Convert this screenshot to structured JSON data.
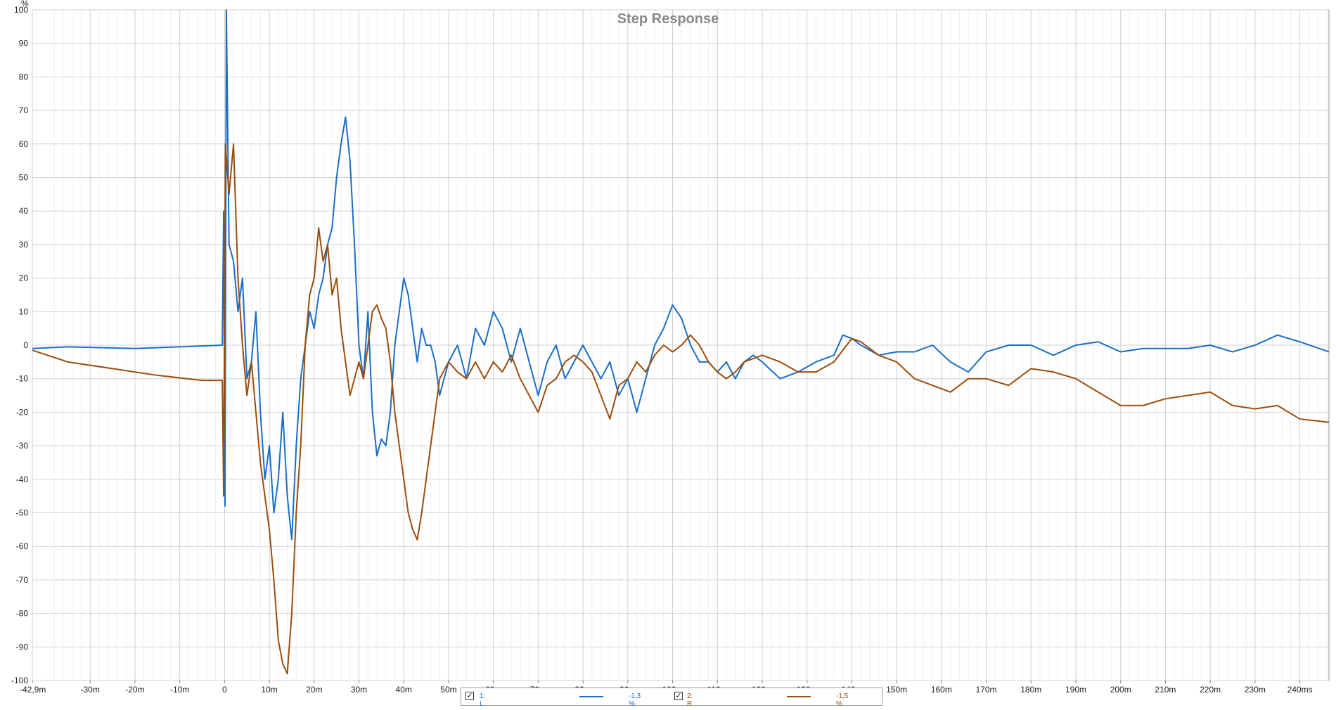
{
  "chart_data": {
    "type": "line",
    "title": "Step Response",
    "ylabel": "%",
    "xlabel": "",
    "xlim": [
      -0.0429,
      0.2465
    ],
    "ylim": [
      -100,
      100
    ],
    "grid": true,
    "legend_position": "bottom-center",
    "y_ticks": [
      100,
      90,
      80,
      70,
      60,
      50,
      40,
      30,
      20,
      10,
      0,
      -10,
      -20,
      -30,
      -40,
      -50,
      -60,
      -70,
      -80,
      -90,
      -100
    ],
    "x_ticks": [
      {
        "value": -0.0429,
        "label": "-42,9m"
      },
      {
        "value": -0.03,
        "label": "-30m"
      },
      {
        "value": -0.02,
        "label": "-20m"
      },
      {
        "value": -0.01,
        "label": "-10m"
      },
      {
        "value": 0,
        "label": "0"
      },
      {
        "value": 0.01,
        "label": "10m"
      },
      {
        "value": 0.02,
        "label": "20m"
      },
      {
        "value": 0.03,
        "label": "30m"
      },
      {
        "value": 0.04,
        "label": "40m"
      },
      {
        "value": 0.05,
        "label": "50m"
      },
      {
        "value": 0.06,
        "label": "60m"
      },
      {
        "value": 0.07,
        "label": "70m"
      },
      {
        "value": 0.08,
        "label": "80m"
      },
      {
        "value": 0.09,
        "label": "90m"
      },
      {
        "value": 0.1,
        "label": "100m"
      },
      {
        "value": 0.11,
        "label": "110m"
      },
      {
        "value": 0.12,
        "label": "120m"
      },
      {
        "value": 0.13,
        "label": "130m"
      },
      {
        "value": 0.14,
        "label": "140m"
      },
      {
        "value": 0.15,
        "label": "150m"
      },
      {
        "value": 0.16,
        "label": "160m"
      },
      {
        "value": 0.17,
        "label": "170m"
      },
      {
        "value": 0.18,
        "label": "180m"
      },
      {
        "value": 0.19,
        "label": "190m"
      },
      {
        "value": 0.2,
        "label": "200m"
      },
      {
        "value": 0.21,
        "label": "210m"
      },
      {
        "value": 0.22,
        "label": "220m"
      },
      {
        "value": 0.23,
        "label": "230m"
      },
      {
        "value": 0.24,
        "label": "240ms"
      }
    ],
    "series": [
      {
        "name": "1: L",
        "color": "#1a6ec8",
        "legend_value": "-1,3 %",
        "checked": true,
        "points": [
          [
            -0.0429,
            -1
          ],
          [
            -0.035,
            -0.5
          ],
          [
            -0.02,
            -1
          ],
          [
            -0.01,
            -0.5
          ],
          [
            -0.0005,
            0
          ],
          [
            -0.0002,
            40
          ],
          [
            0.0001,
            -48
          ],
          [
            0.0004,
            100
          ],
          [
            0.001,
            30
          ],
          [
            0.002,
            25
          ],
          [
            0.003,
            10
          ],
          [
            0.004,
            20
          ],
          [
            0.005,
            -10
          ],
          [
            0.006,
            -5
          ],
          [
            0.007,
            10
          ],
          [
            0.008,
            -20
          ],
          [
            0.009,
            -40
          ],
          [
            0.01,
            -30
          ],
          [
            0.011,
            -50
          ],
          [
            0.012,
            -40
          ],
          [
            0.013,
            -20
          ],
          [
            0.014,
            -45
          ],
          [
            0.015,
            -58
          ],
          [
            0.016,
            -30
          ],
          [
            0.017,
            -10
          ],
          [
            0.018,
            0
          ],
          [
            0.019,
            10
          ],
          [
            0.02,
            5
          ],
          [
            0.021,
            15
          ],
          [
            0.022,
            20
          ],
          [
            0.023,
            30
          ],
          [
            0.024,
            35
          ],
          [
            0.025,
            50
          ],
          [
            0.026,
            60
          ],
          [
            0.027,
            68
          ],
          [
            0.028,
            55
          ],
          [
            0.029,
            30
          ],
          [
            0.03,
            0
          ],
          [
            0.031,
            -10
          ],
          [
            0.032,
            10
          ],
          [
            0.033,
            -20
          ],
          [
            0.034,
            -33
          ],
          [
            0.035,
            -28
          ],
          [
            0.036,
            -30
          ],
          [
            0.037,
            -20
          ],
          [
            0.038,
            0
          ],
          [
            0.039,
            10
          ],
          [
            0.04,
            20
          ],
          [
            0.041,
            15
          ],
          [
            0.042,
            5
          ],
          [
            0.043,
            -5
          ],
          [
            0.044,
            5
          ],
          [
            0.045,
            0
          ],
          [
            0.046,
            0
          ],
          [
            0.047,
            -5
          ],
          [
            0.048,
            -15
          ],
          [
            0.049,
            -10
          ],
          [
            0.05,
            -5
          ],
          [
            0.052,
            0
          ],
          [
            0.054,
            -10
          ],
          [
            0.056,
            5
          ],
          [
            0.058,
            0
          ],
          [
            0.06,
            10
          ],
          [
            0.062,
            5
          ],
          [
            0.064,
            -5
          ],
          [
            0.066,
            5
          ],
          [
            0.068,
            -5
          ],
          [
            0.07,
            -15
          ],
          [
            0.072,
            -5
          ],
          [
            0.074,
            0
          ],
          [
            0.076,
            -10
          ],
          [
            0.078,
            -5
          ],
          [
            0.08,
            0
          ],
          [
            0.082,
            -5
          ],
          [
            0.084,
            -10
          ],
          [
            0.086,
            -5
          ],
          [
            0.088,
            -15
          ],
          [
            0.09,
            -10
          ],
          [
            0.092,
            -20
          ],
          [
            0.094,
            -10
          ],
          [
            0.096,
            0
          ],
          [
            0.098,
            5
          ],
          [
            0.1,
            12
          ],
          [
            0.102,
            8
          ],
          [
            0.104,
            0
          ],
          [
            0.106,
            -5
          ],
          [
            0.108,
            -5
          ],
          [
            0.11,
            -8
          ],
          [
            0.112,
            -5
          ],
          [
            0.114,
            -10
          ],
          [
            0.116,
            -5
          ],
          [
            0.118,
            -3
          ],
          [
            0.12,
            -5
          ],
          [
            0.124,
            -10
          ],
          [
            0.128,
            -8
          ],
          [
            0.132,
            -5
          ],
          [
            0.136,
            -3
          ],
          [
            0.138,
            3
          ],
          [
            0.14,
            2
          ],
          [
            0.142,
            0
          ],
          [
            0.146,
            -3
          ],
          [
            0.15,
            -2
          ],
          [
            0.154,
            -2
          ],
          [
            0.158,
            0
          ],
          [
            0.162,
            -5
          ],
          [
            0.166,
            -8
          ],
          [
            0.17,
            -2
          ],
          [
            0.175,
            0
          ],
          [
            0.18,
            0
          ],
          [
            0.185,
            -3
          ],
          [
            0.19,
            0
          ],
          [
            0.195,
            1
          ],
          [
            0.2,
            -2
          ],
          [
            0.205,
            -1
          ],
          [
            0.21,
            -1
          ],
          [
            0.215,
            -1
          ],
          [
            0.22,
            0
          ],
          [
            0.225,
            -2
          ],
          [
            0.23,
            0
          ],
          [
            0.235,
            3
          ],
          [
            0.24,
            1
          ],
          [
            0.2465,
            -2
          ]
        ]
      },
      {
        "name": "2: R",
        "color": "#9c4d0c",
        "legend_value": "-1,5 %",
        "checked": true,
        "points": [
          [
            -0.0429,
            -1.5
          ],
          [
            -0.035,
            -5
          ],
          [
            -0.025,
            -7
          ],
          [
            -0.015,
            -9
          ],
          [
            -0.005,
            -10.5
          ],
          [
            -0.0005,
            -10.5
          ],
          [
            -0.0002,
            -45
          ],
          [
            0.0002,
            60
          ],
          [
            0.001,
            45
          ],
          [
            0.002,
            60
          ],
          [
            0.003,
            20
          ],
          [
            0.004,
            0
          ],
          [
            0.005,
            -15
          ],
          [
            0.006,
            -5
          ],
          [
            0.007,
            -20
          ],
          [
            0.008,
            -35
          ],
          [
            0.009,
            -45
          ],
          [
            0.01,
            -55
          ],
          [
            0.011,
            -70
          ],
          [
            0.012,
            -88
          ],
          [
            0.013,
            -95
          ],
          [
            0.014,
            -98
          ],
          [
            0.015,
            -80
          ],
          [
            0.016,
            -50
          ],
          [
            0.017,
            -30
          ],
          [
            0.018,
            0
          ],
          [
            0.019,
            15
          ],
          [
            0.02,
            20
          ],
          [
            0.021,
            35
          ],
          [
            0.022,
            25
          ],
          [
            0.023,
            30
          ],
          [
            0.024,
            15
          ],
          [
            0.025,
            20
          ],
          [
            0.026,
            5
          ],
          [
            0.027,
            -5
          ],
          [
            0.028,
            -15
          ],
          [
            0.029,
            -10
          ],
          [
            0.03,
            -5
          ],
          [
            0.031,
            -10
          ],
          [
            0.032,
            0
          ],
          [
            0.033,
            10
          ],
          [
            0.034,
            12
          ],
          [
            0.035,
            8
          ],
          [
            0.036,
            5
          ],
          [
            0.037,
            -5
          ],
          [
            0.038,
            -20
          ],
          [
            0.039,
            -30
          ],
          [
            0.04,
            -40
          ],
          [
            0.041,
            -50
          ],
          [
            0.042,
            -55
          ],
          [
            0.043,
            -58
          ],
          [
            0.044,
            -50
          ],
          [
            0.045,
            -40
          ],
          [
            0.046,
            -30
          ],
          [
            0.047,
            -20
          ],
          [
            0.048,
            -10
          ],
          [
            0.05,
            -5
          ],
          [
            0.052,
            -8
          ],
          [
            0.054,
            -10
          ],
          [
            0.056,
            -5
          ],
          [
            0.058,
            -10
          ],
          [
            0.06,
            -5
          ],
          [
            0.062,
            -8
          ],
          [
            0.064,
            -3
          ],
          [
            0.066,
            -10
          ],
          [
            0.068,
            -15
          ],
          [
            0.07,
            -20
          ],
          [
            0.072,
            -12
          ],
          [
            0.074,
            -10
          ],
          [
            0.076,
            -5
          ],
          [
            0.078,
            -3
          ],
          [
            0.08,
            -5
          ],
          [
            0.082,
            -8
          ],
          [
            0.084,
            -15
          ],
          [
            0.086,
            -22
          ],
          [
            0.088,
            -12
          ],
          [
            0.09,
            -10
          ],
          [
            0.092,
            -5
          ],
          [
            0.094,
            -8
          ],
          [
            0.096,
            -3
          ],
          [
            0.098,
            0
          ],
          [
            0.1,
            -2
          ],
          [
            0.102,
            0
          ],
          [
            0.104,
            3
          ],
          [
            0.106,
            0
          ],
          [
            0.108,
            -5
          ],
          [
            0.11,
            -8
          ],
          [
            0.112,
            -10
          ],
          [
            0.114,
            -8
          ],
          [
            0.116,
            -5
          ],
          [
            0.12,
            -3
          ],
          [
            0.124,
            -5
          ],
          [
            0.128,
            -8
          ],
          [
            0.132,
            -8
          ],
          [
            0.136,
            -5
          ],
          [
            0.14,
            2
          ],
          [
            0.142,
            1
          ],
          [
            0.146,
            -3
          ],
          [
            0.15,
            -5
          ],
          [
            0.154,
            -10
          ],
          [
            0.158,
            -12
          ],
          [
            0.162,
            -14
          ],
          [
            0.166,
            -10
          ],
          [
            0.17,
            -10
          ],
          [
            0.175,
            -12
          ],
          [
            0.18,
            -7
          ],
          [
            0.185,
            -8
          ],
          [
            0.19,
            -10
          ],
          [
            0.195,
            -14
          ],
          [
            0.2,
            -18
          ],
          [
            0.205,
            -18
          ],
          [
            0.21,
            -16
          ],
          [
            0.215,
            -15
          ],
          [
            0.22,
            -14
          ],
          [
            0.225,
            -18
          ],
          [
            0.23,
            -19
          ],
          [
            0.235,
            -18
          ],
          [
            0.24,
            -22
          ],
          [
            0.2465,
            -23
          ]
        ]
      }
    ]
  }
}
